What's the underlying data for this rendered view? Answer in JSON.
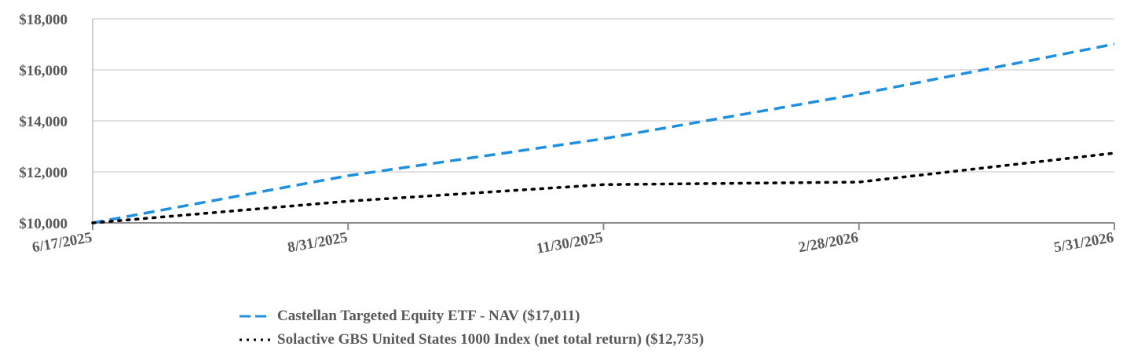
{
  "chart_data": {
    "type": "line",
    "x": [
      "6/17/2025",
      "8/31/2025",
      "11/30/2025",
      "2/28/2026",
      "5/31/2026"
    ],
    "ylim": [
      10000,
      18000
    ],
    "yticks": [
      "$10,000",
      "$12,000",
      "$14,000",
      "$16,000",
      "$18,000"
    ],
    "ytick_values": [
      10000,
      12000,
      14000,
      16000,
      18000
    ],
    "grid": true,
    "legend_position": "bottom",
    "series": [
      {
        "name": "Castellan Targeted Equity ETF - NAV ($17,011)",
        "color": "#1f8fe0",
        "style": "dashed",
        "values": [
          10000,
          11850,
          13300,
          15050,
          17011
        ]
      },
      {
        "name": "Solactive GBS United States 1000 Index (net total return) ($12,735)",
        "color": "#000000",
        "style": "dotted",
        "values": [
          10000,
          10850,
          11500,
          11600,
          12735
        ]
      }
    ]
  }
}
